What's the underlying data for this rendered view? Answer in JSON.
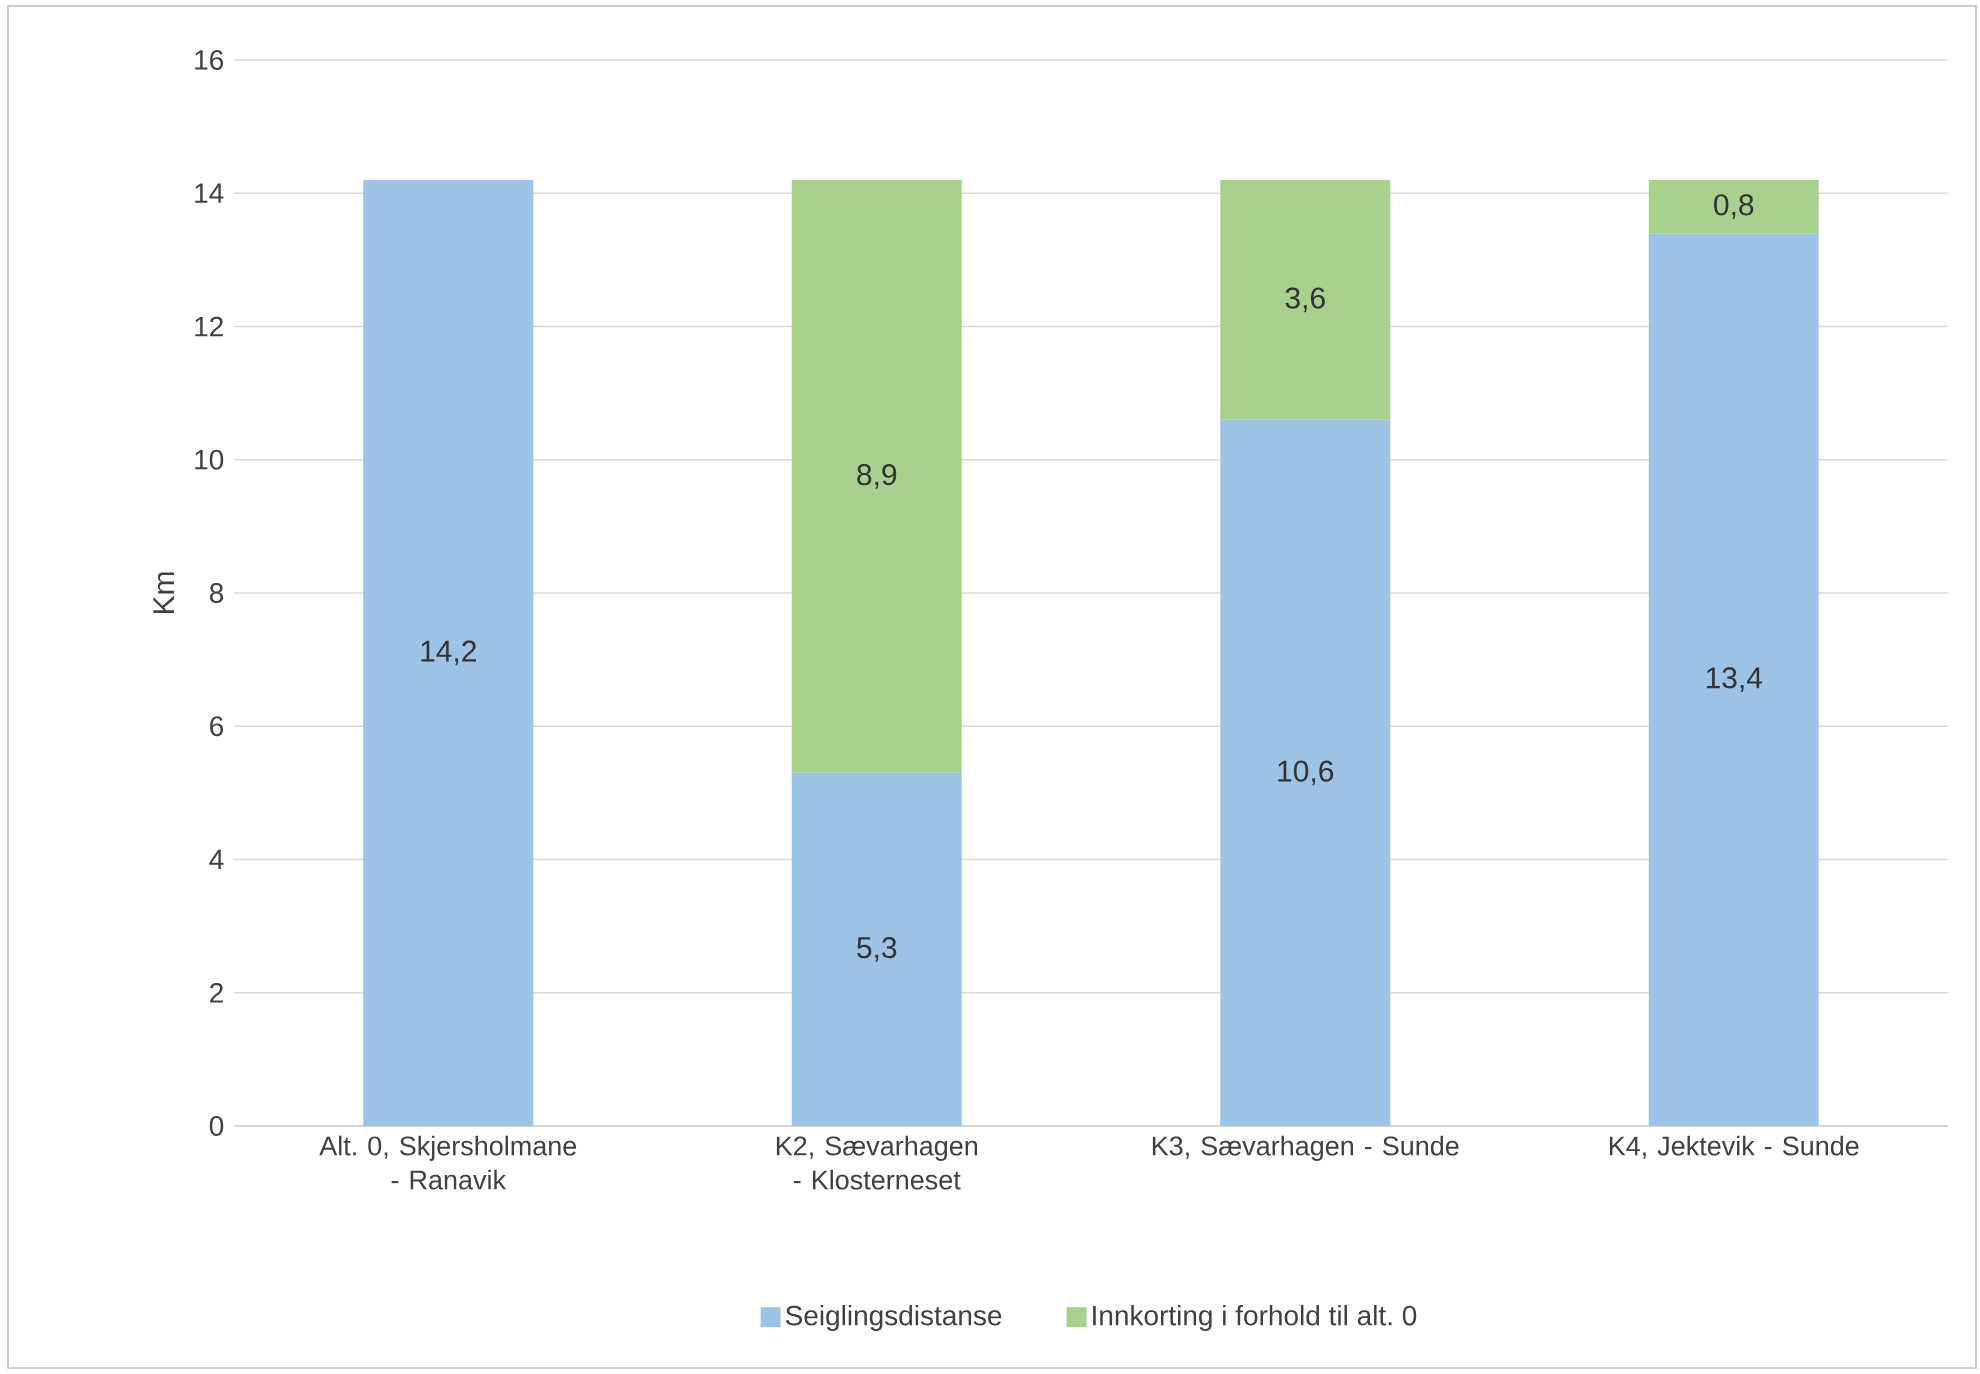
{
  "chart_data": {
    "type": "bar",
    "stacked": true,
    "ylabel": "Km",
    "categories": [
      "Alt. 0, Skjersholmane - Ranavik",
      "K2, Sævarhagen - Klosterneset",
      "K3, Sævarhagen - Sunde",
      "K4, Jektevik - Sunde"
    ],
    "series": [
      {
        "name": "Seiglingsdistanse",
        "color": "#9dc3e6",
        "values": [
          14.2,
          5.3,
          10.6,
          13.4
        ],
        "value_labels": [
          "14,2",
          "5,3",
          "10,6",
          "13,4"
        ]
      },
      {
        "name": "Innkorting i forhold til alt. 0",
        "color": "#a9d18e",
        "values": [
          0,
          8.9,
          3.6,
          0.8
        ],
        "value_labels": [
          null,
          "8,9",
          "3,6",
          "0,8"
        ]
      }
    ],
    "ylim": [
      0,
      16
    ],
    "yticks": [
      0,
      2,
      4,
      6,
      8,
      10,
      12,
      14,
      16
    ],
    "grid": "y",
    "legend": "bottom"
  }
}
